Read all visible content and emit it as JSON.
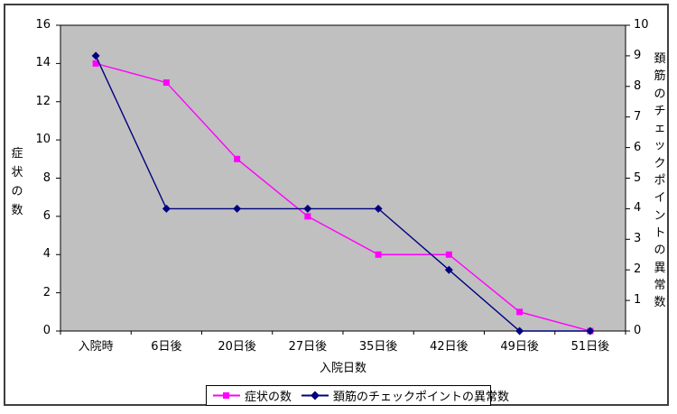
{
  "chart_data": {
    "type": "line",
    "categories": [
      "入院時",
      "6日後",
      "20日後",
      "27日後",
      "35日後",
      "42日後",
      "49日後",
      "51日後"
    ],
    "x_axis_title": "入院日数",
    "y_axis_left": {
      "title": "症状の数",
      "range": [
        0,
        16
      ],
      "ticks": [
        0,
        2,
        4,
        6,
        8,
        10,
        12,
        14,
        16
      ]
    },
    "y_axis_right": {
      "title": "頚筋のチェックポイントの異常数",
      "range": [
        0,
        10
      ],
      "ticks": [
        0,
        1,
        2,
        3,
        4,
        5,
        6,
        7,
        8,
        9,
        10
      ]
    },
    "series": [
      {
        "name": "症状の数",
        "axis": "left",
        "marker": "square",
        "color": "#FF00FF",
        "values": [
          14,
          13,
          9,
          6,
          4,
          4,
          1,
          0
        ]
      },
      {
        "name": "頚筋のチェックポイントの異常数",
        "axis": "right",
        "marker": "diamond",
        "color": "#000080",
        "values": [
          9,
          4,
          4,
          4,
          4,
          2,
          0,
          0
        ]
      }
    ],
    "plot_background": "#C0C0C0",
    "axis_color": "#000000",
    "legend_position": "bottom"
  }
}
